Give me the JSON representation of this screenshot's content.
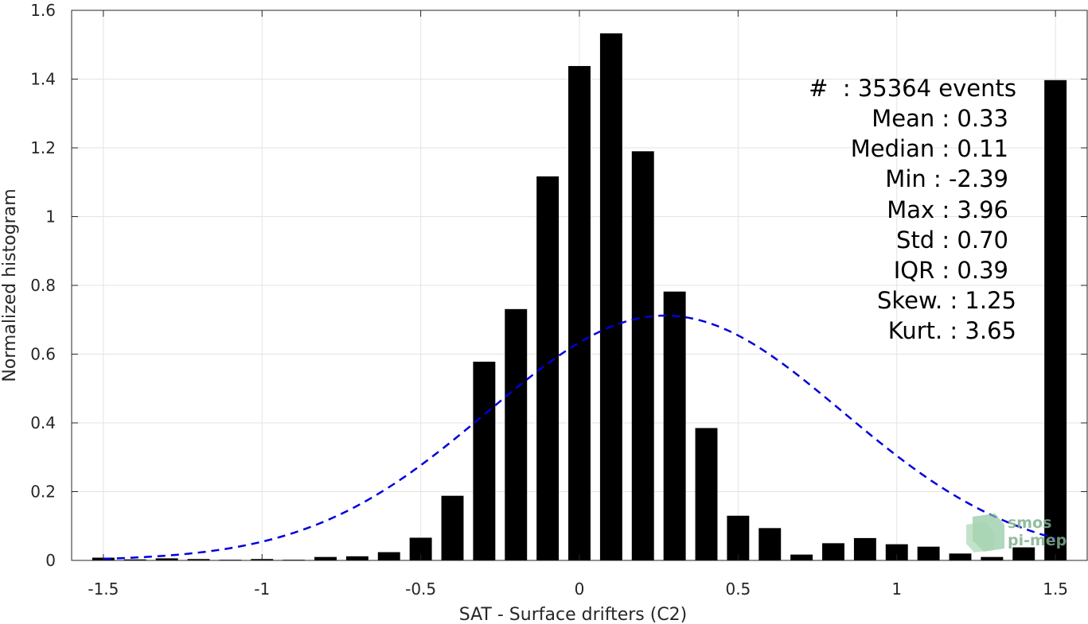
{
  "chart_data": {
    "type": "bar",
    "xlabel": "SAT - Surface drifters (C2)",
    "ylabel": "Normalized histogram",
    "xlim": [
      -1.6,
      1.6
    ],
    "ylim": [
      0,
      1.6
    ],
    "xticks": [
      -1.5,
      -1,
      -0.5,
      0,
      0.5,
      1,
      1.5
    ],
    "xtick_labels": [
      "-1.5",
      "-1",
      "-0.5",
      "0",
      "0.5",
      "1",
      "1.5"
    ],
    "yticks": [
      0,
      0.2,
      0.4,
      0.6,
      0.8,
      1,
      1.2,
      1.4,
      1.6
    ],
    "ytick_labels": [
      "0",
      "0.2",
      "0.4",
      "0.6",
      "0.8",
      "1",
      "1.2",
      "1.4",
      "1.6"
    ],
    "grid": true,
    "bar_width": 0.07,
    "bar_color": "#000000",
    "x": [
      -1.5,
      -1.4,
      -1.3,
      -1.2,
      -1.1,
      -1.0,
      -0.9,
      -0.8,
      -0.7,
      -0.6,
      -0.5,
      -0.4,
      -0.3,
      -0.2,
      -0.1,
      0.0,
      0.1,
      0.2,
      0.3,
      0.4,
      0.5,
      0.6,
      0.7,
      0.8,
      0.9,
      1.0,
      1.1,
      1.2,
      1.3,
      1.4,
      1.5
    ],
    "values": [
      0.008,
      0.003,
      0.006,
      0.004,
      0.002,
      0.004,
      0.002,
      0.01,
      0.012,
      0.024,
      0.066,
      0.188,
      0.578,
      0.731,
      1.117,
      1.438,
      1.533,
      1.19,
      0.782,
      0.385,
      0.13,
      0.094,
      0.017,
      0.05,
      0.065,
      0.047,
      0.04,
      0.02,
      0.01,
      0.038,
      1.397
    ],
    "fit_curve": {
      "style": "dashed",
      "color": "#0000dd",
      "mean": 0.27,
      "std": 0.56,
      "peak": 0.712
    },
    "stats_lines": [
      "#  : 35364 events",
      "Mean : 0.33",
      "Median : 0.11",
      "Min : -2.39",
      "Max : 3.96",
      "Std : 0.70",
      "IQR : 0.39",
      "Skew. : 1.25",
      "Kurt. : 3.65"
    ],
    "watermark": [
      "smos",
      "pi-mep"
    ]
  }
}
